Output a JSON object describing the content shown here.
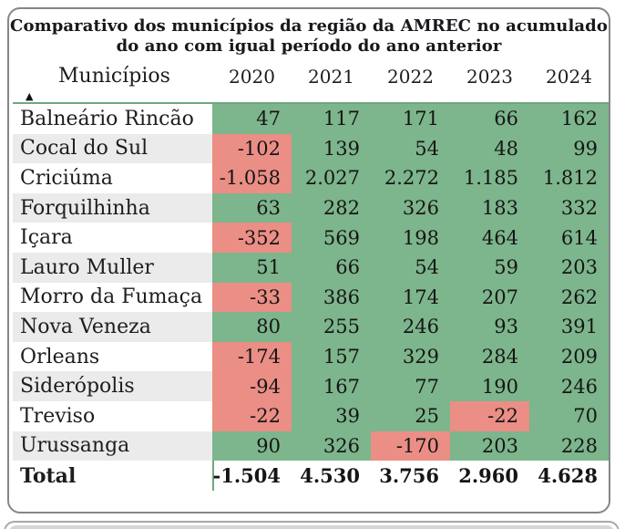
{
  "title": {
    "line1": "Comparativo dos municípios da região da AMREC no acumulado",
    "line2": "do ano com igual período do ano anterior"
  },
  "table": {
    "header": {
      "municipality": "Municípios",
      "years": [
        "2020",
        "2021",
        "2022",
        "2023",
        "2024"
      ]
    },
    "sort_icon": "▲",
    "rows": [
      {
        "name": "Balneário Rincão",
        "values": [
          "47",
          "117",
          "171",
          "66",
          "162"
        ]
      },
      {
        "name": "Cocal do Sul",
        "values": [
          "-102",
          "139",
          "54",
          "48",
          "99"
        ]
      },
      {
        "name": "Criciúma",
        "values": [
          "-1.058",
          "2.027",
          "2.272",
          "1.185",
          "1.812"
        ]
      },
      {
        "name": "Forquilhinha",
        "values": [
          "63",
          "282",
          "326",
          "183",
          "332"
        ]
      },
      {
        "name": "Içara",
        "values": [
          "-352",
          "569",
          "198",
          "464",
          "614"
        ]
      },
      {
        "name": "Lauro Muller",
        "values": [
          "51",
          "66",
          "54",
          "59",
          "203"
        ]
      },
      {
        "name": "Morro da Fumaça",
        "values": [
          "-33",
          "386",
          "174",
          "207",
          "262"
        ]
      },
      {
        "name": "Nova Veneza",
        "values": [
          "80",
          "255",
          "246",
          "93",
          "391"
        ]
      },
      {
        "name": "Orleans",
        "values": [
          "-174",
          "157",
          "329",
          "284",
          "209"
        ]
      },
      {
        "name": "Siderópolis",
        "values": [
          "-94",
          "167",
          "77",
          "190",
          "246"
        ]
      },
      {
        "name": "Treviso",
        "values": [
          "-22",
          "39",
          "25",
          "-22",
          "70"
        ]
      },
      {
        "name": "Urussanga",
        "values": [
          "90",
          "326",
          "-170",
          "203",
          "228"
        ]
      }
    ],
    "total": {
      "name": "Total",
      "values": [
        "-1.504",
        "4.530",
        "3.756",
        "2.960",
        "4.628"
      ]
    }
  },
  "colors": {
    "positive_bg": "#7db58c",
    "negative_bg": "#eb8e86",
    "stripe": "#ebebeb",
    "accent_line": "#6fa77e",
    "card_border": "#868686"
  },
  "chart_data": {
    "type": "table",
    "title": "Comparativo dos municípios da região da AMREC no acumulado do ano com igual período do ano anterior",
    "categories": [
      "2020",
      "2021",
      "2022",
      "2023",
      "2024"
    ],
    "series": [
      {
        "name": "Balneário Rincão",
        "values": [
          47,
          117,
          171,
          66,
          162
        ]
      },
      {
        "name": "Cocal do Sul",
        "values": [
          -102,
          139,
          54,
          48,
          99
        ]
      },
      {
        "name": "Criciúma",
        "values": [
          -1058,
          2027,
          2272,
          1185,
          1812
        ]
      },
      {
        "name": "Forquilhinha",
        "values": [
          63,
          282,
          326,
          183,
          332
        ]
      },
      {
        "name": "Içara",
        "values": [
          -352,
          569,
          198,
          464,
          614
        ]
      },
      {
        "name": "Lauro Muller",
        "values": [
          51,
          66,
          54,
          59,
          203
        ]
      },
      {
        "name": "Morro da Fumaça",
        "values": [
          -33,
          386,
          174,
          207,
          262
        ]
      },
      {
        "name": "Nova Veneza",
        "values": [
          80,
          255,
          246,
          93,
          391
        ]
      },
      {
        "name": "Orleans",
        "values": [
          -174,
          157,
          329,
          284,
          209
        ]
      },
      {
        "name": "Siderópolis",
        "values": [
          -94,
          167,
          77,
          190,
          246
        ]
      },
      {
        "name": "Treviso",
        "values": [
          -22,
          39,
          25,
          -22,
          70
        ]
      },
      {
        "name": "Urussanga",
        "values": [
          90,
          326,
          -170,
          203,
          228
        ]
      },
      {
        "name": "Total",
        "values": [
          -1504,
          4530,
          3756,
          2960,
          4628
        ]
      }
    ],
    "conditional_formatting": "negative values shaded red, non-negative shaded green",
    "legend_position": "none",
    "grid": false
  }
}
